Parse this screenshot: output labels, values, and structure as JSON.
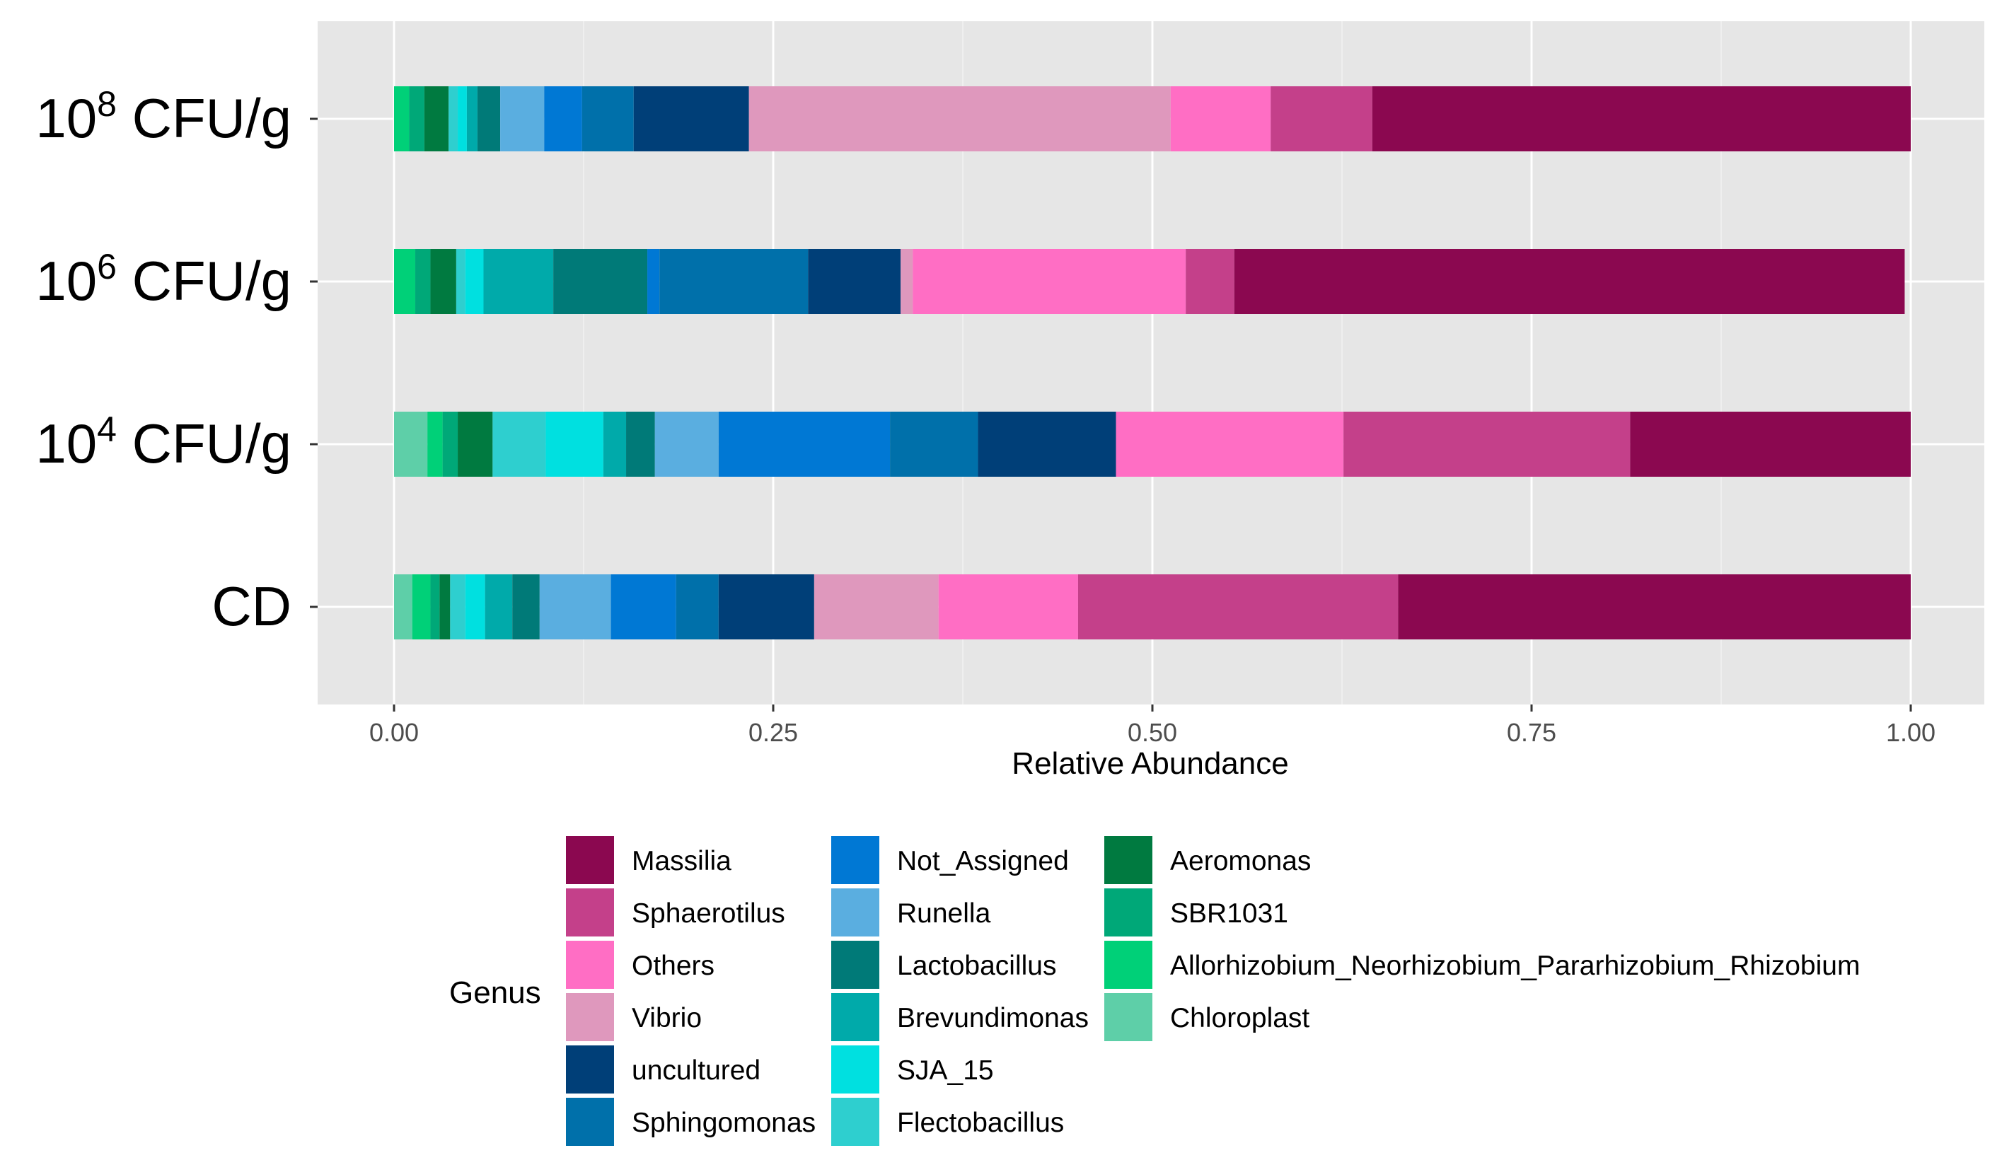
{
  "chart_data": {
    "type": "bar",
    "orientation": "horizontal",
    "stacked": true,
    "title": "",
    "xlabel": "Relative Abundance",
    "ylabel": "",
    "xlim": [
      0,
      1
    ],
    "xticks": [
      0,
      0.25,
      0.5,
      0.75,
      1
    ],
    "xtick_labels": [
      "0.00",
      "0.25",
      "0.50",
      "0.75",
      "1.00"
    ],
    "grid": true,
    "categories": [
      {
        "base": "10",
        "exp": "8",
        "unit": "CFU/g"
      },
      {
        "base": "10",
        "exp": "6",
        "unit": "CFU/g"
      },
      {
        "base": "10",
        "exp": "4",
        "unit": "CFU/g"
      },
      {
        "base": "CD",
        "exp": "",
        "unit": ""
      }
    ],
    "legend_title": "Genus",
    "legend_position": "bottom",
    "series": [
      {
        "name": "Chloroplast",
        "color": "#5ecfa8",
        "values": [
          0.0,
          0.0,
          0.022,
          0.012
        ]
      },
      {
        "name": "Allorhizobium_Neorhizobium_Pararhizobium_Rhizobium",
        "color": "#00d078",
        "values": [
          0.01,
          0.014,
          0.01,
          0.012
        ]
      },
      {
        "name": "SBR1031",
        "color": "#00a878",
        "values": [
          0.01,
          0.01,
          0.01,
          0.006
        ]
      },
      {
        "name": "Aeromonas",
        "color": "#007a40",
        "values": [
          0.016,
          0.017,
          0.023,
          0.007
        ]
      },
      {
        "name": "Flectobacillus",
        "color": "#2ecfcf",
        "values": [
          0.006,
          0.006,
          0.035,
          0.01
        ]
      },
      {
        "name": "SJA_15",
        "color": "#00e0e0",
        "values": [
          0.006,
          0.012,
          0.038,
          0.013
        ]
      },
      {
        "name": "Brevundimonas",
        "color": "#00aaaa",
        "values": [
          0.007,
          0.046,
          0.015,
          0.018
        ]
      },
      {
        "name": "Lactobacillus",
        "color": "#007a78",
        "values": [
          0.015,
          0.062,
          0.019,
          0.018
        ]
      },
      {
        "name": "Runella",
        "color": "#5aaee0",
        "values": [
          0.029,
          0.0,
          0.042,
          0.047
        ]
      },
      {
        "name": "Not_Assigned",
        "color": "#0078d4",
        "values": [
          0.025,
          0.008,
          0.113,
          0.043
        ]
      },
      {
        "name": "Sphingomonas",
        "color": "#0070aa",
        "values": [
          0.034,
          0.098,
          0.058,
          0.028
        ]
      },
      {
        "name": "uncultured",
        "color": "#003f78",
        "values": [
          0.076,
          0.061,
          0.091,
          0.063
        ]
      },
      {
        "name": "Vibrio",
        "color": "#df98bd",
        "values": [
          0.278,
          0.008,
          0.0,
          0.082
        ]
      },
      {
        "name": "Others",
        "color": "#ff6ec4",
        "values": [
          0.066,
          0.18,
          0.15,
          0.092
        ]
      },
      {
        "name": "Sphaerotilus",
        "color": "#c4408a",
        "values": [
          0.067,
          0.032,
          0.189,
          0.211
        ]
      },
      {
        "name": "Massilia",
        "color": "#8b0850",
        "values": [
          0.355,
          0.442,
          0.185,
          0.338
        ]
      }
    ],
    "legend_order": [
      "Massilia",
      "Sphaerotilus",
      "Others",
      "Vibrio",
      "uncultured",
      "Sphingomonas",
      "Not_Assigned",
      "Runella",
      "Lactobacillus",
      "Brevundimonas",
      "SJA_15",
      "Flectobacillus",
      "Aeromonas",
      "SBR1031",
      "Allorhizobium_Neorhizobium_Pararhizobium_Rhizobium",
      "Chloroplast"
    ]
  }
}
